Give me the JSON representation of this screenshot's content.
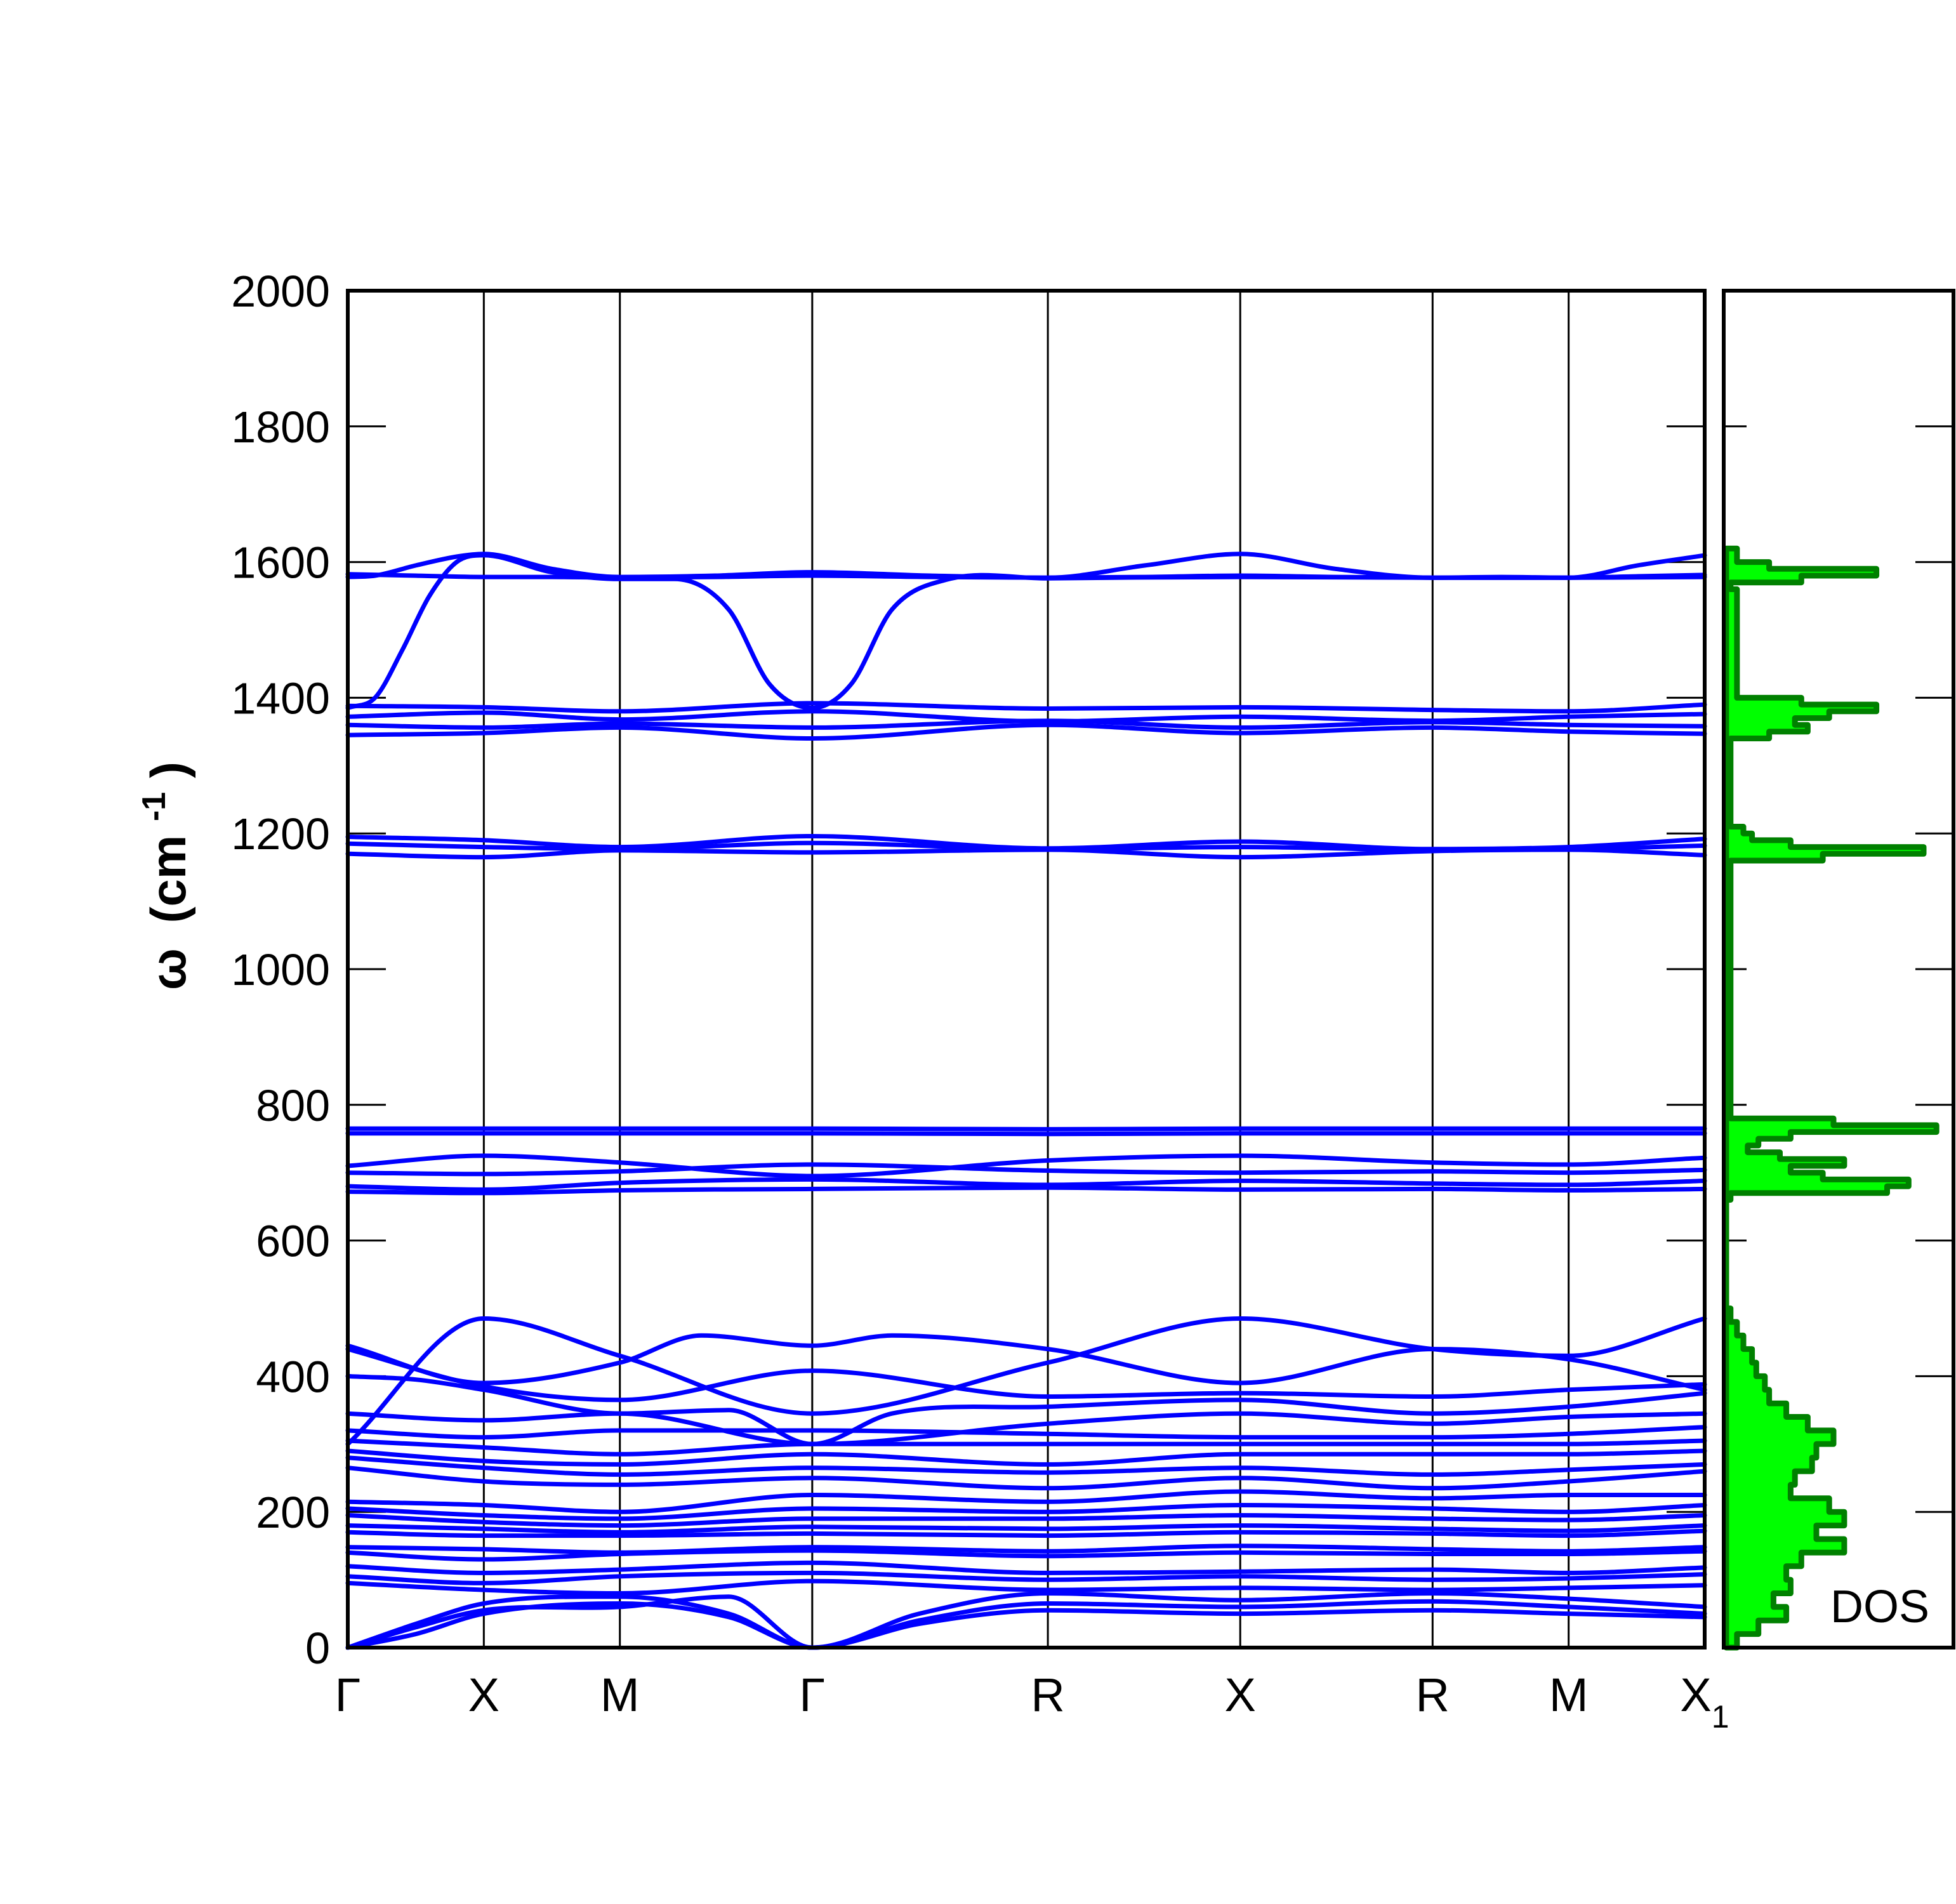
{
  "chart_data": [
    {
      "type": "line",
      "panel": "phonon dispersion",
      "title": "",
      "ylabel": "ω (cm⁻¹)",
      "ylabel_parts": {
        "symbol": "ω",
        "open": "(cm",
        "superscript": "-1",
        "close": ")"
      },
      "ylim": [
        0,
        2000
      ],
      "yticks": [
        0,
        200,
        400,
        600,
        800,
        1000,
        1200,
        1400,
        1600,
        1800,
        2000
      ],
      "kpath": {
        "labels": [
          "Γ",
          "X",
          "M",
          "Γ",
          "R",
          "X",
          "R",
          "M",
          "X"
        ],
        "subscripts": [
          "",
          "",
          "",
          "",
          "",
          "",
          "",
          "",
          "1"
        ],
        "positions": [
          0,
          0.5,
          1.0,
          1.707,
          2.573,
          3.28,
          3.987,
          4.487,
          4.987
        ]
      },
      "grid": "vertical lines at high-symmetry points",
      "series_color": "#0000ff",
      "series": [
        {
          "x": [
            0,
            0.25,
            0.5,
            0.75,
            1.0,
            1.35,
            1.707,
            2.14,
            2.573,
            2.93,
            3.28,
            3.63,
            3.987,
            4.24,
            4.487,
            4.74,
            4.987
          ],
          "values": [
            1582,
            1580,
            1578,
            1578,
            1577,
            1578,
            1580,
            1578,
            1577,
            1578,
            1580,
            1578,
            1577,
            1578,
            1577,
            1579,
            1581
          ]
        },
        {
          "x": [
            0,
            0.1,
            0.25,
            0.4,
            0.5,
            0.75,
            1.0,
            1.35,
            1.707,
            2.14,
            2.573,
            2.93,
            3.28,
            3.63,
            3.987,
            4.24,
            4.487,
            4.74,
            4.987
          ],
          "values": [
            1578,
            1580,
            1595,
            1608,
            1612,
            1590,
            1578,
            1580,
            1585,
            1580,
            1577,
            1595,
            1612,
            1590,
            1577,
            1577,
            1577,
            1595,
            1610
          ]
        },
        {
          "x": [
            0,
            0.1,
            0.2,
            0.3,
            0.4,
            0.5,
            0.75,
            1.0,
            1.2,
            1.4,
            1.55,
            1.707,
            1.85,
            2.0,
            2.2,
            2.573,
            3.28,
            3.987,
            4.487,
            4.987
          ],
          "values": [
            1385,
            1400,
            1470,
            1550,
            1600,
            1610,
            1585,
            1575,
            1575,
            1530,
            1420,
            1385,
            1420,
            1530,
            1574,
            1576,
            1578,
            1577,
            1577,
            1578
          ]
        },
        {
          "x": [
            0,
            0.5,
            1.0,
            1.707,
            2.573,
            3.28,
            3.987,
            4.487,
            4.987
          ],
          "values": [
            1388,
            1386,
            1380,
            1392,
            1384,
            1386,
            1382,
            1380,
            1390
          ]
        },
        {
          "x": [
            0,
            0.5,
            1.0,
            1.707,
            2.573,
            3.28,
            3.987,
            4.487,
            4.987
          ],
          "values": [
            1372,
            1378,
            1368,
            1380,
            1365,
            1372,
            1366,
            1372,
            1376
          ]
        },
        {
          "x": [
            0,
            0.5,
            1.0,
            1.707,
            2.573,
            3.28,
            3.987,
            4.487,
            4.987
          ],
          "values": [
            1360,
            1356,
            1362,
            1356,
            1366,
            1356,
            1364,
            1360,
            1358
          ]
        },
        {
          "x": [
            0,
            0.5,
            1.0,
            1.707,
            2.573,
            3.28,
            3.987,
            4.487,
            4.987
          ],
          "values": [
            1345,
            1348,
            1356,
            1340,
            1360,
            1348,
            1356,
            1350,
            1347
          ]
        },
        {
          "x": [
            0,
            0.5,
            1.0,
            1.707,
            2.573,
            3.28,
            3.987,
            4.487,
            4.987
          ],
          "values": [
            1195,
            1190,
            1180,
            1196,
            1178,
            1188,
            1177,
            1180,
            1192
          ]
        },
        {
          "x": [
            0,
            0.5,
            1.0,
            1.707,
            2.573,
            3.28,
            3.987,
            4.487,
            4.987
          ],
          "values": [
            1185,
            1180,
            1177,
            1186,
            1177,
            1180,
            1176,
            1177,
            1182
          ]
        },
        {
          "x": [
            0,
            0.5,
            1.0,
            1.707,
            2.573,
            3.28,
            3.987,
            4.487,
            4.987
          ],
          "values": [
            1170,
            1165,
            1175,
            1172,
            1176,
            1165,
            1174,
            1176,
            1168
          ]
        },
        {
          "x": [
            0,
            1.0,
            1.707,
            2.573,
            3.28,
            3.987,
            4.987
          ],
          "values": [
            765,
            765,
            765,
            764,
            765,
            765,
            765
          ]
        },
        {
          "x": [
            0,
            1.0,
            1.707,
            2.573,
            3.28,
            3.987,
            4.987
          ],
          "values": [
            758,
            758,
            758,
            757,
            758,
            758,
            758
          ]
        },
        {
          "x": [
            0,
            0.5,
            1.0,
            1.707,
            2.573,
            3.28,
            3.987,
            4.487,
            4.987
          ],
          "values": [
            710,
            725,
            715,
            695,
            718,
            725,
            715,
            712,
            722
          ]
        },
        {
          "x": [
            0,
            0.5,
            1.0,
            1.707,
            2.573,
            3.28,
            3.987,
            4.487,
            4.987
          ],
          "values": [
            700,
            698,
            702,
            712,
            703,
            700,
            702,
            700,
            704
          ]
        },
        {
          "x": [
            0,
            0.5,
            1.0,
            1.707,
            2.573,
            3.28,
            3.987,
            4.487,
            4.987
          ],
          "values": [
            680,
            675,
            685,
            690,
            682,
            688,
            684,
            682,
            688
          ]
        },
        {
          "x": [
            0,
            0.5,
            1.0,
            1.707,
            2.573,
            3.28,
            3.987,
            4.487,
            4.987
          ],
          "values": [
            672,
            670,
            674,
            676,
            678,
            675,
            676,
            674,
            676
          ]
        },
        {
          "x": [
            0,
            0.5,
            1.0,
            1.707,
            2.573,
            3.28,
            3.987,
            4.487,
            4.987
          ],
          "values": [
            300,
            485,
            430,
            345,
            420,
            485,
            440,
            430,
            485
          ]
        },
        {
          "x": [
            0,
            0.5,
            1.0,
            1.3,
            1.707,
            2.0,
            2.573,
            3.28,
            3.987,
            4.487,
            4.987
          ],
          "values": [
            445,
            390,
            420,
            460,
            445,
            460,
            440,
            390,
            440,
            425,
            380
          ]
        },
        {
          "x": [
            0,
            0.5,
            1.0,
            1.707,
            2.573,
            3.28,
            3.987,
            4.487,
            4.987
          ],
          "values": [
            440,
            385,
            365,
            408,
            370,
            375,
            370,
            380,
            388
          ]
        },
        {
          "x": [
            0,
            0.25,
            0.5,
            1.0,
            1.4,
            1.707,
            2.0,
            2.573,
            3.28,
            3.987,
            4.487,
            4.987
          ],
          "values": [
            400,
            395,
            380,
            345,
            350,
            300,
            345,
            355,
            365,
            345,
            355,
            375
          ]
        },
        {
          "x": [
            0,
            0.5,
            1.0,
            1.707,
            2.573,
            3.28,
            3.987,
            4.487,
            4.987
          ],
          "values": [
            345,
            335,
            345,
            300,
            330,
            345,
            330,
            340,
            345
          ]
        },
        {
          "x": [
            0,
            0.5,
            1.0,
            1.707,
            2.573,
            3.28,
            3.987,
            4.487,
            4.987
          ],
          "values": [
            320,
            310,
            320,
            320,
            315,
            310,
            310,
            315,
            325
          ]
        },
        {
          "x": [
            0,
            0.5,
            1.0,
            1.707,
            2.573,
            3.28,
            3.987,
            4.487,
            4.987
          ],
          "values": [
            305,
            295,
            285,
            300,
            300,
            300,
            300,
            300,
            305
          ]
        },
        {
          "x": [
            0,
            0.5,
            1.0,
            1.707,
            2.573,
            3.28,
            3.987,
            4.487,
            4.987
          ],
          "values": [
            290,
            275,
            270,
            285,
            270,
            285,
            285,
            285,
            290
          ]
        },
        {
          "x": [
            0,
            0.5,
            1.0,
            1.707,
            2.573,
            3.28,
            3.987,
            4.487,
            4.987
          ],
          "values": [
            280,
            265,
            255,
            265,
            258,
            265,
            255,
            262,
            270
          ]
        },
        {
          "x": [
            0,
            0.5,
            1.0,
            1.707,
            2.573,
            3.28,
            3.987,
            4.487,
            4.987
          ],
          "values": [
            265,
            245,
            240,
            250,
            235,
            250,
            235,
            245,
            260
          ]
        },
        {
          "x": [
            0,
            0.5,
            1.0,
            1.707,
            2.573,
            3.28,
            3.987,
            4.487,
            4.987
          ],
          "values": [
            215,
            210,
            200,
            225,
            215,
            230,
            220,
            225,
            225
          ]
        },
        {
          "x": [
            0,
            0.5,
            1.0,
            1.707,
            2.573,
            3.28,
            3.987,
            4.487,
            4.987
          ],
          "values": [
            205,
            195,
            190,
            205,
            200,
            210,
            205,
            200,
            210
          ]
        },
        {
          "x": [
            0,
            0.5,
            1.0,
            1.707,
            2.573,
            3.28,
            3.987,
            4.487,
            4.987
          ],
          "values": [
            195,
            185,
            180,
            190,
            190,
            195,
            190,
            188,
            195
          ]
        },
        {
          "x": [
            0,
            0.5,
            1.0,
            1.707,
            2.573,
            3.28,
            3.987,
            4.487,
            4.987
          ],
          "values": [
            180,
            175,
            170,
            178,
            175,
            180,
            175,
            172,
            180
          ]
        },
        {
          "x": [
            0,
            0.5,
            1.0,
            1.707,
            2.573,
            3.28,
            3.987,
            4.487,
            4.987
          ],
          "values": [
            170,
            165,
            165,
            168,
            165,
            170,
            168,
            165,
            172
          ]
        },
        {
          "x": [
            0,
            0.5,
            1.0,
            1.707,
            2.573,
            3.28,
            3.987,
            4.487,
            4.987
          ],
          "values": [
            148,
            145,
            140,
            148,
            142,
            150,
            145,
            142,
            148
          ]
        },
        {
          "x": [
            0,
            0.5,
            1.0,
            1.707,
            2.573,
            3.28,
            3.987,
            4.487,
            4.987
          ],
          "values": [
            140,
            130,
            138,
            143,
            135,
            140,
            138,
            138,
            142
          ]
        },
        {
          "x": [
            0,
            0.5,
            1.0,
            1.707,
            2.573,
            3.28,
            3.987,
            4.487,
            4.987
          ],
          "values": [
            120,
            110,
            115,
            125,
            110,
            112,
            115,
            110,
            118
          ]
        },
        {
          "x": [
            0,
            0.5,
            1.0,
            1.707,
            2.573,
            3.28,
            3.987,
            4.487,
            4.987
          ],
          "values": [
            105,
            95,
            105,
            110,
            100,
            105,
            100,
            102,
            108
          ]
        },
        {
          "x": [
            0,
            0.5,
            1.0,
            1.707,
            2.573,
            3.28,
            3.987,
            4.487,
            4.987
          ],
          "values": [
            95,
            85,
            80,
            98,
            85,
            88,
            85,
            88,
            92
          ]
        },
        {
          "x": [
            0,
            0.25,
            0.5,
            1.0,
            1.4,
            1.707,
            2.1,
            2.573,
            3.28,
            3.987,
            4.487,
            4.987
          ],
          "values": [
            0,
            35,
            65,
            75,
            50,
            0,
            50,
            80,
            70,
            80,
            72,
            60
          ]
        },
        {
          "x": [
            0,
            0.25,
            0.5,
            1.0,
            1.4,
            1.707,
            2.1,
            2.573,
            3.28,
            3.987,
            4.487,
            4.987
          ],
          "values": [
            0,
            30,
            55,
            60,
            75,
            0,
            40,
            65,
            60,
            68,
            60,
            50
          ]
        },
        {
          "x": [
            0,
            0.25,
            0.5,
            1.0,
            1.4,
            1.707,
            2.1,
            2.573,
            3.28,
            3.987,
            4.487,
            4.987
          ],
          "values": [
            0,
            20,
            50,
            65,
            45,
            0,
            35,
            55,
            50,
            55,
            50,
            45
          ]
        }
      ]
    },
    {
      "type": "area",
      "panel": "DOS",
      "label": "DOS",
      "ylim": [
        0,
        2000
      ],
      "xlim": [
        0,
        1
      ],
      "fill_color": "#00ff00",
      "edge_color": "#008000",
      "y": [
        0,
        20,
        40,
        60,
        80,
        100,
        120,
        140,
        160,
        180,
        200,
        220,
        240,
        260,
        280,
        300,
        320,
        340,
        360,
        380,
        400,
        420,
        440,
        460,
        480,
        500,
        660,
        670,
        680,
        690,
        700,
        710,
        720,
        730,
        740,
        750,
        760,
        770,
        780,
        1150,
        1160,
        1170,
        1180,
        1190,
        1200,
        1210,
        1330,
        1340,
        1350,
        1360,
        1370,
        1380,
        1390,
        1400,
        1560,
        1570,
        1580,
        1590,
        1600,
        1620
      ],
      "values": [
        0.05,
        0.15,
        0.28,
        0.22,
        0.3,
        0.28,
        0.35,
        0.55,
        0.42,
        0.55,
        0.48,
        0.3,
        0.32,
        0.4,
        0.42,
        0.5,
        0.38,
        0.28,
        0.2,
        0.18,
        0.14,
        0.12,
        0.08,
        0.05,
        0.02,
        0.0,
        0.02,
        0.75,
        0.85,
        0.45,
        0.3,
        0.55,
        0.25,
        0.1,
        0.15,
        0.3,
        0.98,
        0.5,
        0.02,
        0.02,
        0.45,
        0.92,
        0.3,
        0.12,
        0.08,
        0.02,
        0.02,
        0.2,
        0.38,
        0.32,
        0.48,
        0.7,
        0.35,
        0.05,
        0.02,
        0.35,
        0.7,
        0.2,
        0.05,
        0.0
      ]
    }
  ]
}
